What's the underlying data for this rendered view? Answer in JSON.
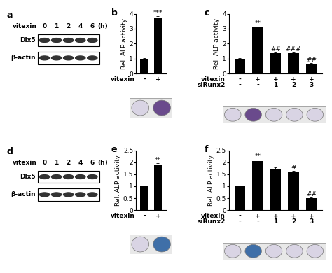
{
  "chart_data": [
    {
      "type": "bar",
      "title": "b",
      "y_label": "Rel. ALP activity",
      "x_rows": [
        {
          "name": "vitexin",
          "labels": [
            "-",
            "+"
          ]
        }
      ],
      "values": [
        1,
        3.7
      ],
      "errors": [
        0.03,
        0.15
      ],
      "annotations": [
        null,
        "***"
      ],
      "ylim": [
        0,
        4
      ],
      "yticks": [
        0,
        1,
        2,
        3,
        4
      ],
      "color": "#000000"
    },
    {
      "type": "bar",
      "title": "c",
      "y_label": "Rel. ALP activity",
      "x_rows": [
        {
          "name": "vitexin",
          "labels": [
            "-",
            "+",
            "+",
            "+",
            "+"
          ]
        },
        {
          "name": "siRunx2",
          "labels": [
            "-",
            "-",
            "1",
            "2",
            "3"
          ]
        }
      ],
      "values": [
        1,
        3.1,
        1.35,
        1.35,
        0.65
      ],
      "errors": [
        0.02,
        0.06,
        0.05,
        0.05,
        0.04
      ],
      "annotations": [
        null,
        "**",
        "##",
        "###",
        "##"
      ],
      "ylim": [
        0,
        4
      ],
      "yticks": [
        0,
        1,
        2,
        3,
        4
      ],
      "color": "#000000"
    },
    {
      "type": "bar",
      "title": "e",
      "y_label": "Rel. ALP activity",
      "x_rows": [
        {
          "name": "vitexin",
          "labels": [
            "-",
            "+"
          ]
        }
      ],
      "values": [
        1,
        1.9
      ],
      "errors": [
        0.02,
        0.05
      ],
      "annotations": [
        null,
        "**"
      ],
      "ylim": [
        0,
        2.5
      ],
      "yticks": [
        0,
        0.5,
        1,
        1.5,
        2,
        2.5
      ],
      "color": "#000000"
    },
    {
      "type": "bar",
      "title": "f",
      "y_label": "Rel. ALP activity",
      "x_rows": [
        {
          "name": "vitexin",
          "labels": [
            "-",
            "+",
            "+",
            "+",
            "+"
          ]
        },
        {
          "name": "siRunx2",
          "labels": [
            "-",
            "-",
            "1",
            "2",
            "3"
          ]
        }
      ],
      "values": [
        1,
        2.05,
        1.7,
        1.58,
        0.5
      ],
      "errors": [
        0.02,
        0.05,
        0.08,
        0.05,
        0.03
      ],
      "annotations": [
        null,
        "**",
        null,
        "#",
        "##"
      ],
      "ylim": [
        0,
        2.5
      ],
      "yticks": [
        0,
        0.5,
        1,
        1.5,
        2,
        2.5
      ],
      "color": "#000000"
    }
  ],
  "blots": [
    {
      "title": "a",
      "treatment": "vitexin",
      "time_points": [
        "0",
        "1",
        "2",
        "4",
        "6"
      ],
      "time_unit": "(h)",
      "rows": [
        "Dlx5",
        "β-actin"
      ]
    },
    {
      "title": "d",
      "treatment": "vitexin",
      "time_points": [
        "0",
        "1",
        "2",
        "4",
        "6"
      ],
      "time_unit": "(h)",
      "rows": [
        "Dlx5",
        "β-actin"
      ]
    }
  ]
}
